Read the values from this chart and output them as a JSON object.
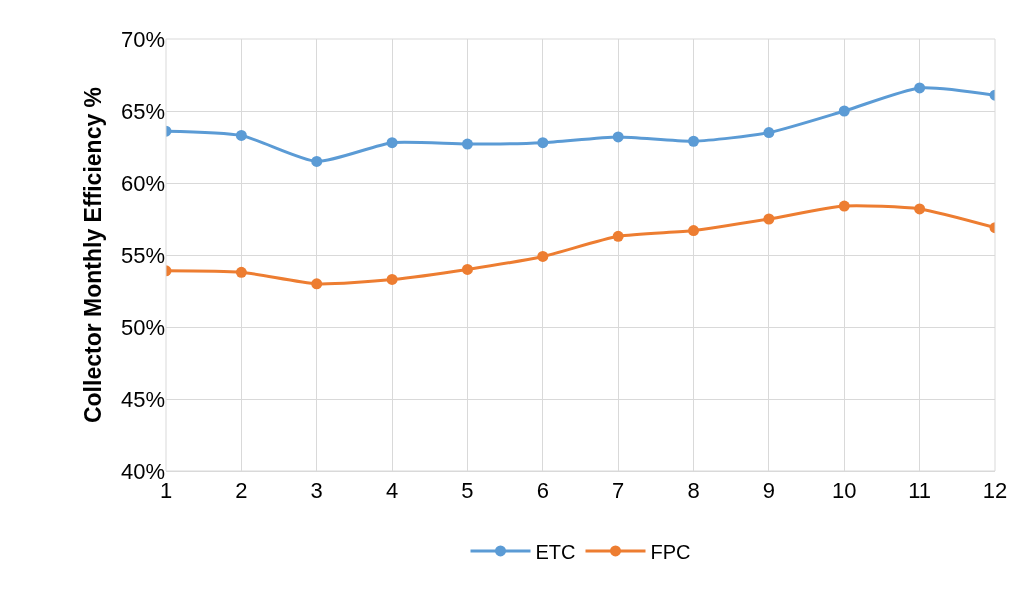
{
  "chart_data": {
    "type": "line",
    "ylabel": "Collector Monthly Efficiency %",
    "x": [
      1,
      2,
      3,
      4,
      5,
      6,
      7,
      8,
      9,
      10,
      11,
      12
    ],
    "xlim": [
      1,
      12
    ],
    "xticks": [
      1,
      2,
      3,
      4,
      5,
      6,
      7,
      8,
      9,
      10,
      11,
      12
    ],
    "ylim": [
      40,
      70
    ],
    "yticks": [
      {
        "value": 40,
        "label": "40%"
      },
      {
        "value": 45,
        "label": "45%"
      },
      {
        "value": 50,
        "label": "50%"
      },
      {
        "value": 55,
        "label": "55%"
      },
      {
        "value": 60,
        "label": "60%"
      },
      {
        "value": 65,
        "label": "65%"
      },
      {
        "value": 70,
        "label": "70%"
      }
    ],
    "series": [
      {
        "name": "ETC",
        "color": "#5b9bd5",
        "values": [
          63.6,
          63.3,
          61.5,
          62.8,
          62.7,
          62.8,
          63.2,
          62.9,
          63.5,
          65.0,
          66.6,
          66.1
        ]
      },
      {
        "name": "FPC",
        "color": "#ed7d31",
        "values": [
          53.9,
          53.8,
          53.0,
          53.3,
          54.0,
          54.9,
          56.3,
          56.7,
          57.5,
          58.4,
          58.2,
          56.9
        ]
      }
    ],
    "grid": true,
    "legend": "bottom",
    "marker": "circle",
    "line_style": "solid"
  }
}
